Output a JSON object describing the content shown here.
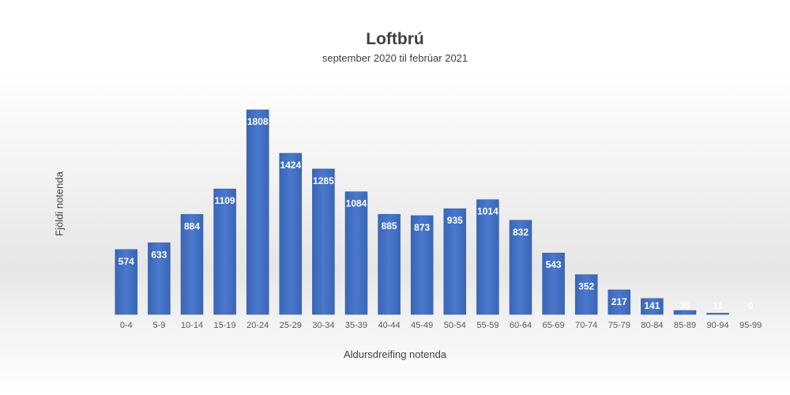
{
  "chart_data": {
    "type": "bar",
    "title": "Loftbrú",
    "subtitle": "september 2020 til febrúar 2021",
    "xlabel": "Aldursdreifing notenda",
    "ylabel": "Fjöldi notenda",
    "categories": [
      "0-4",
      "5-9",
      "10-14",
      "15-19",
      "20-24",
      "25-29",
      "30-34",
      "35-39",
      "40-44",
      "45-49",
      "50-54",
      "55-59",
      "60-64",
      "65-69",
      "70-74",
      "75-79",
      "80-84",
      "85-89",
      "90-94",
      "95-99"
    ],
    "values": [
      574,
      633,
      884,
      1109,
      1808,
      1424,
      1285,
      1084,
      885,
      873,
      935,
      1014,
      832,
      543,
      352,
      217,
      141,
      35,
      11,
      0
    ],
    "ylim": [
      0,
      1808
    ],
    "grid": false,
    "legend": "none",
    "bar_color": "#4472C4"
  }
}
